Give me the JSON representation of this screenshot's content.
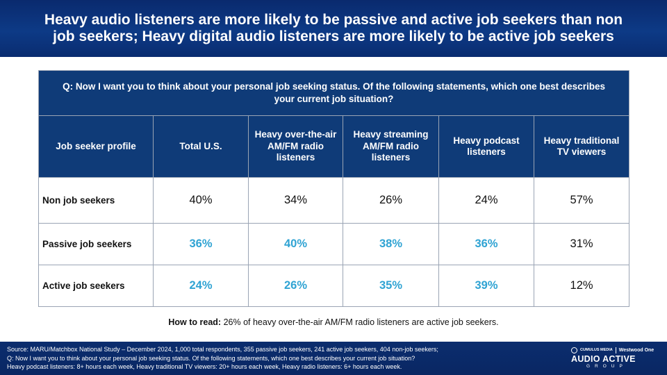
{
  "title": "Heavy audio listeners are more likely to be passive and active job seekers than non job seekers; Heavy digital audio listeners are more likely to be active job seekers",
  "table": {
    "question": "Q: Now I want you to think about your personal job seeking status.  Of the following statements,  which one best describes your current job situation?",
    "headers": [
      "Job seeker profile",
      "Total U.S.",
      "Heavy over-the-air AM/FM radio listeners",
      "Heavy streaming AM/FM radio listeners",
      "Heavy podcast listeners",
      "Heavy traditional TV viewers"
    ],
    "rows": [
      {
        "label": "Non job seekers",
        "values": [
          "40%",
          "34%",
          "26%",
          "24%",
          "57%"
        ]
      },
      {
        "label": "Passive job seekers",
        "values": [
          "36%",
          "40%",
          "38%",
          "36%",
          "31%"
        ]
      },
      {
        "label": "Active job seekers",
        "values": [
          "24%",
          "26%",
          "35%",
          "39%",
          "12%"
        ]
      }
    ],
    "highlight_color": "#2fa3d3"
  },
  "how_to_read": {
    "label": "How to read:",
    "text": "26% of heavy over-the-air AM/FM radio listeners are active job seekers."
  },
  "footer": {
    "source_lines": [
      "Source: MARU/Matchbox National Study – December 2024, 1,000 total respondents, 355 passive job seekers, 241 active job seekers, 404 non-job seekers;",
      "Q: Now I want you to think about your personal job seeking status. Of the following statements, which one best describes your current job situation?",
      "Heavy podcast listeners: 8+ hours each week, Heavy traditional TV viewers: 20+ hours each week, Heavy radio listeners: 6+ hours each week."
    ],
    "logo": {
      "brand_small": "CUMULUS MEDIA",
      "partner": "Westwood One",
      "main": "AUDIO ACTIVE",
      "sub": "GROUP"
    }
  },
  "colors": {
    "title_bg": "#0a2a6e",
    "header_bg": "#0f3b78",
    "highlight": "#2fa3d3"
  }
}
